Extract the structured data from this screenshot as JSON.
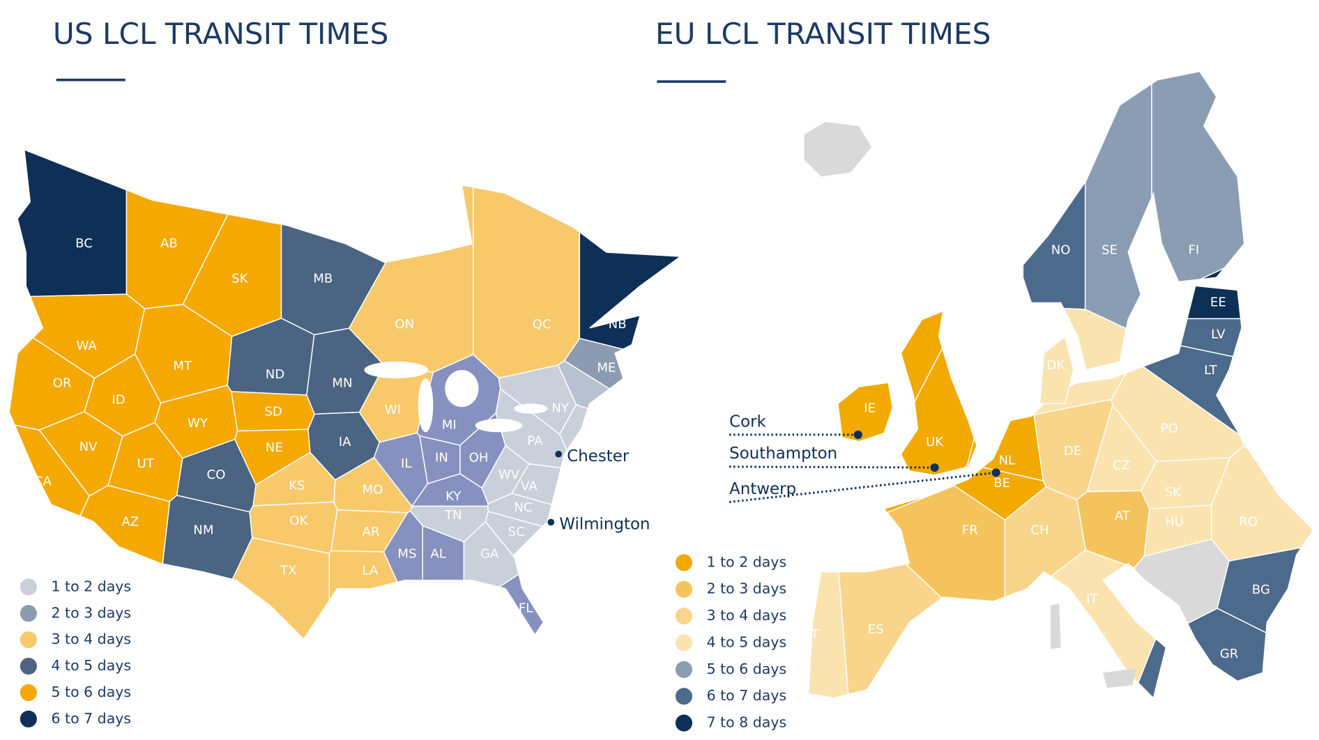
{
  "us_map": {
    "title": "US LCL TRANSIT TIMES",
    "legend": [
      {
        "label": "1 to 2 days",
        "color": "#c9d0da"
      },
      {
        "label": "2 to 3 days",
        "color": "#8d9bb1"
      },
      {
        "label": "3 to 4 days",
        "color": "#f7c96b"
      },
      {
        "label": "4 to 5 days",
        "color": "#4a6482"
      },
      {
        "label": "5 to 6 days",
        "color": "#f4a800"
      },
      {
        "label": "6 to 7 days",
        "color": "#0e2f56"
      }
    ],
    "regions": [
      {
        "label": "BC",
        "color": "#0e2f56"
      },
      {
        "label": "AB",
        "color": "#f4a800"
      },
      {
        "label": "SK",
        "color": "#f4a800"
      },
      {
        "label": "MB",
        "color": "#4a6482"
      },
      {
        "label": "ON",
        "color": "#f7c96b"
      },
      {
        "label": "QC",
        "color": "#f7c96b"
      },
      {
        "label": "NB",
        "color": "#0e2f56"
      },
      {
        "label": "WA",
        "color": "#f4a800"
      },
      {
        "label": "OR",
        "color": "#f4a800"
      },
      {
        "label": "MT",
        "color": "#f4a800"
      },
      {
        "label": "ID",
        "color": "#f4a800"
      },
      {
        "label": "NV",
        "color": "#f4a800"
      },
      {
        "label": "CA",
        "color": "#f4a800"
      },
      {
        "label": "UT",
        "color": "#f4a800"
      },
      {
        "label": "AZ",
        "color": "#f4a800"
      },
      {
        "label": "WY",
        "color": "#f4a800"
      },
      {
        "label": "ND",
        "color": "#4a6482"
      },
      {
        "label": "SD",
        "color": "#f4a800"
      },
      {
        "label": "NE",
        "color": "#f4a800"
      },
      {
        "label": "CO",
        "color": "#4a6482"
      },
      {
        "label": "NM",
        "color": "#4a6482"
      },
      {
        "label": "MN",
        "color": "#4a6482"
      },
      {
        "label": "IA",
        "color": "#4a6482"
      },
      {
        "label": "WI",
        "color": "#f7c96b"
      },
      {
        "label": "KS",
        "color": "#f7c96b"
      },
      {
        "label": "OK",
        "color": "#f7c96b"
      },
      {
        "label": "TX",
        "color": "#f7c96b"
      },
      {
        "label": "MO",
        "color": "#f7c96b"
      },
      {
        "label": "AR",
        "color": "#f7c96b"
      },
      {
        "label": "LA",
        "color": "#f7c96b"
      },
      {
        "label": "MI",
        "color": "#8791bf"
      },
      {
        "label": "IL",
        "color": "#8791bf"
      },
      {
        "label": "IN",
        "color": "#8791bf"
      },
      {
        "label": "OH",
        "color": "#8791bf"
      },
      {
        "label": "KY",
        "color": "#8791bf"
      },
      {
        "label": "TN",
        "color": "#c9d0da"
      },
      {
        "label": "MS",
        "color": "#8791bf"
      },
      {
        "label": "AL",
        "color": "#8791bf"
      },
      {
        "label": "FL",
        "color": "#8791bf"
      },
      {
        "label": "GA",
        "color": "#c9d0da"
      },
      {
        "label": "SC",
        "color": "#c9d0da"
      },
      {
        "label": "NC",
        "color": "#c9d0da"
      },
      {
        "label": "VA",
        "color": "#c9d0da"
      },
      {
        "label": "WV",
        "color": "#c9d0da"
      },
      {
        "label": "PA",
        "color": "#c9d0da"
      },
      {
        "label": "NY",
        "color": "#c9d0da"
      },
      {
        "label": "ME",
        "color": "#8d9bb1"
      }
    ],
    "cities": [
      {
        "name": "Chester"
      },
      {
        "name": "Wilmington"
      }
    ]
  },
  "eu_map": {
    "title": "EU LCL TRANSIT TIMES",
    "legend": [
      {
        "label": "1 to 2 days",
        "color": "#f2a900"
      },
      {
        "label": "2 to 3 days",
        "color": "#f5c35c"
      },
      {
        "label": "3 to 4 days",
        "color": "#f8d58b"
      },
      {
        "label": "4 to 5 days",
        "color": "#fbe3b0"
      },
      {
        "label": "5 to 6 days",
        "color": "#8a9db3"
      },
      {
        "label": "6 to 7 days",
        "color": "#4c6a8b"
      },
      {
        "label": "7 to 8 days",
        "color": "#0e2f56"
      }
    ],
    "regions": [
      {
        "label": "NO",
        "color": "#4c6a8b"
      },
      {
        "label": "SE",
        "color": "#8a9db3"
      },
      {
        "label": "FI",
        "color": "#8a9db3"
      },
      {
        "label": "EE",
        "color": "#0e2f56"
      },
      {
        "label": "LV",
        "color": "#4c6a8b"
      },
      {
        "label": "LT",
        "color": "#4c6a8b"
      },
      {
        "label": "DK",
        "color": "#fbe3b0"
      },
      {
        "label": "IE",
        "color": "#f2a900"
      },
      {
        "label": "UK",
        "color": "#f2a900"
      },
      {
        "label": "NL",
        "color": "#f2a900"
      },
      {
        "label": "BE",
        "color": "#f2a900"
      },
      {
        "label": "DE",
        "color": "#f8d58b"
      },
      {
        "label": "PO",
        "color": "#fbe3b0"
      },
      {
        "label": "CZ",
        "color": "#fbe3b0"
      },
      {
        "label": "SK",
        "color": "#fbe3b0"
      },
      {
        "label": "AT",
        "color": "#f5c35c"
      },
      {
        "label": "HU",
        "color": "#fbe3b0"
      },
      {
        "label": "RO",
        "color": "#fbe3b0"
      },
      {
        "label": "CH",
        "color": "#f8d58b"
      },
      {
        "label": "FR",
        "color": "#f5c35c"
      },
      {
        "label": "IT",
        "color": "#fbe3b0"
      },
      {
        "label": "ES",
        "color": "#f8d58b"
      },
      {
        "label": "PT",
        "color": "#fbe3b0"
      },
      {
        "label": "BG",
        "color": "#4c6a8b"
      },
      {
        "label": "GR",
        "color": "#4c6a8b"
      }
    ],
    "cities": [
      {
        "name": "Cork"
      },
      {
        "name": "Southampton"
      },
      {
        "name": "Antwerp"
      }
    ]
  }
}
